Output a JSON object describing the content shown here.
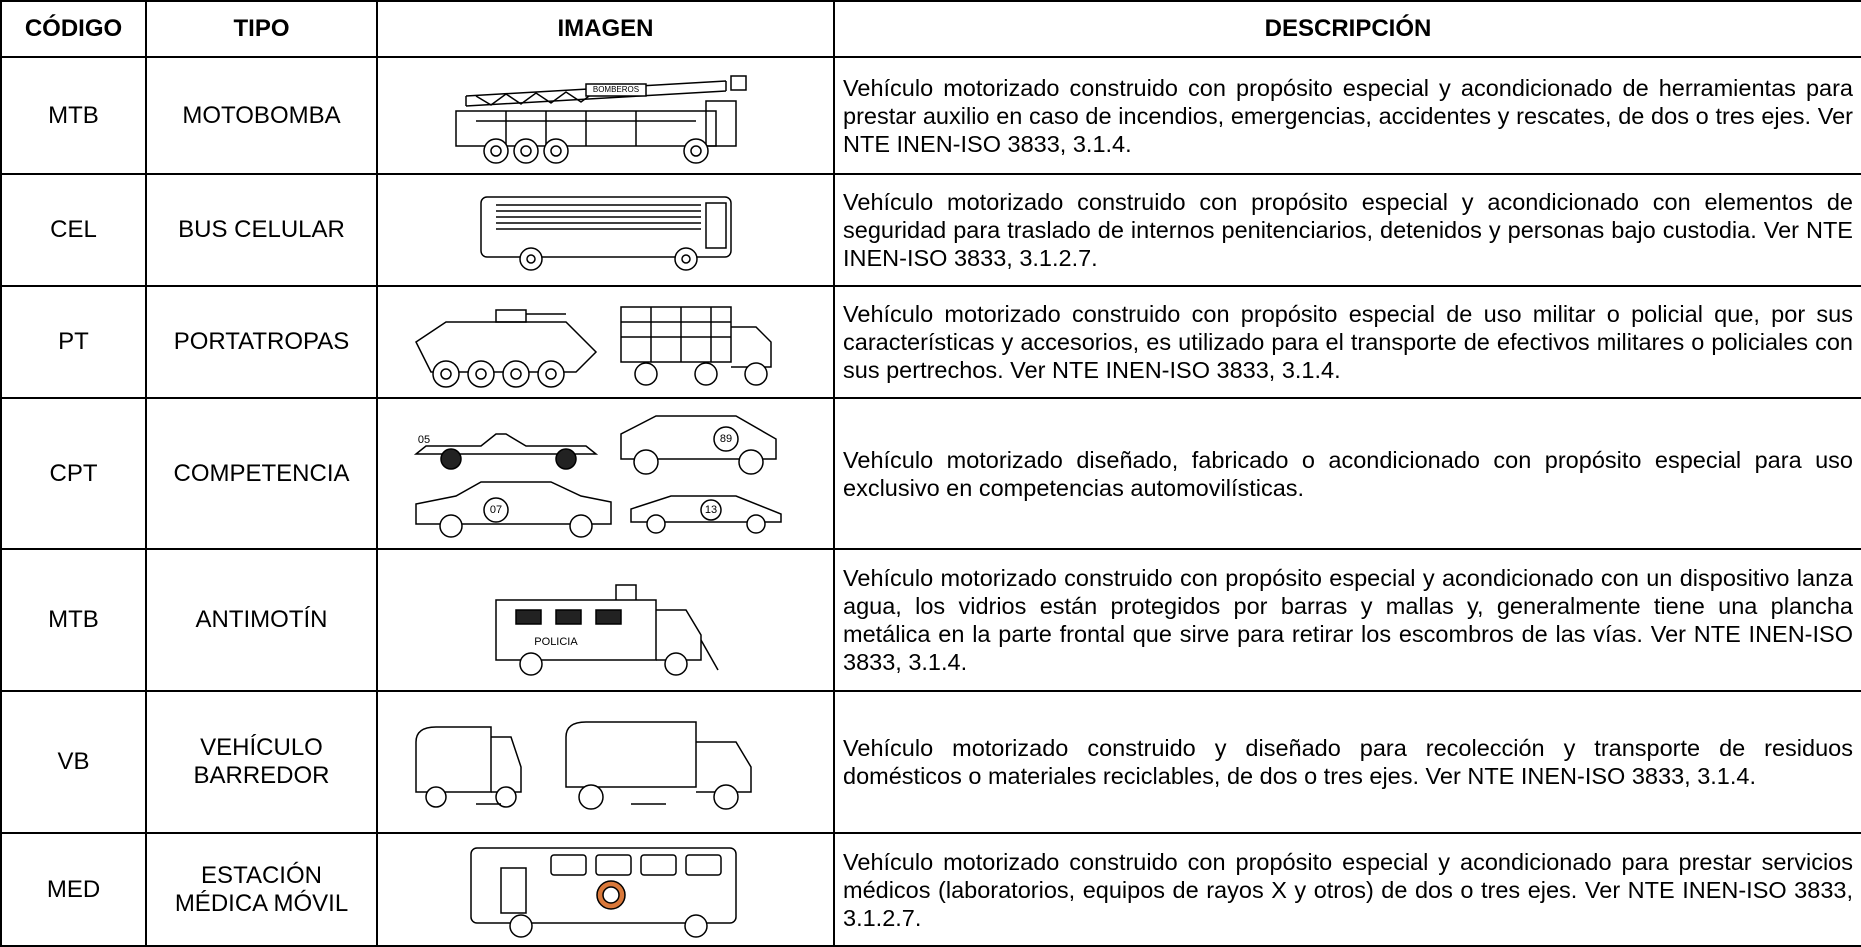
{
  "table": {
    "header": [
      "CÓDIGO",
      "TIPO",
      "IMAGEN",
      "DESCRIPCIÓN"
    ],
    "rows": [
      {
        "code": "MTB",
        "type": [
          "MOTOBOMBA"
        ],
        "image_labels": [
          "BOMBEROS"
        ],
        "description": "Vehículo motorizado construido con propósito especial y acondicionado de herramientas para prestar auxilio en caso de incendios, emergencias, accidentes y rescates, de dos o tres ejes. Ver NTE INEN-ISO 3833, 3.1.4."
      },
      {
        "code": "CEL",
        "type": [
          "BUS CELULAR"
        ],
        "description": "Vehículo motorizado construido con propósito especial y acondicionado con elementos de seguridad para traslado de internos penitenciarios, detenidos y personas bajo custodia. Ver NTE INEN-ISO 3833, 3.1.2.7."
      },
      {
        "code": "PT",
        "type": [
          "PORTATROPAS"
        ],
        "description": "Vehículo motorizado construido con propósito especial de uso militar o policial que, por sus características y accesorios, es utilizado para el transporte de efectivos militares o policiales con sus pertrechos. Ver NTE INEN-ISO 3833, 3.1.4."
      },
      {
        "code": "CPT",
        "type": [
          "COMPETENCIA"
        ],
        "image_labels": [
          "05",
          "89",
          "07",
          "13"
        ],
        "description": "Vehículo motorizado diseñado, fabricado o acondicionado con propósito especial para uso exclusivo en competencias automovilísticas."
      },
      {
        "code": "MTB",
        "type": [
          "ANTIMOTÍN"
        ],
        "image_labels": [
          "POLICIA"
        ],
        "description": "Vehículo motorizado construido con propósito especial y acondicionado con un dispositivo lanza agua, los vidrios están protegidos por barras y mallas y, generalmente tiene una plancha metálica en la parte frontal que sirve para retirar los escombros de las vías. Ver NTE INEN-ISO 3833, 3.1.4."
      },
      {
        "code": "VB",
        "type": [
          "VEHÍCULO",
          "BARREDOR"
        ],
        "description": "Vehículo motorizado construido y diseñado para recolección y transporte de residuos domésticos o materiales reciclables, de dos o tres ejes. Ver NTE INEN-ISO 3833, 3.1.4."
      },
      {
        "code": "MED",
        "type": [
          "ESTACIÓN",
          "MÉDICA MÓVIL"
        ],
        "description": "Vehículo motorizado construido con propósito especial y acondicionado para prestar servicios médicos (laboratorios, equipos de rayos X y otros) de dos o tres ejes. Ver NTE INEN-ISO 3833, 3.1.2.7."
      }
    ]
  }
}
